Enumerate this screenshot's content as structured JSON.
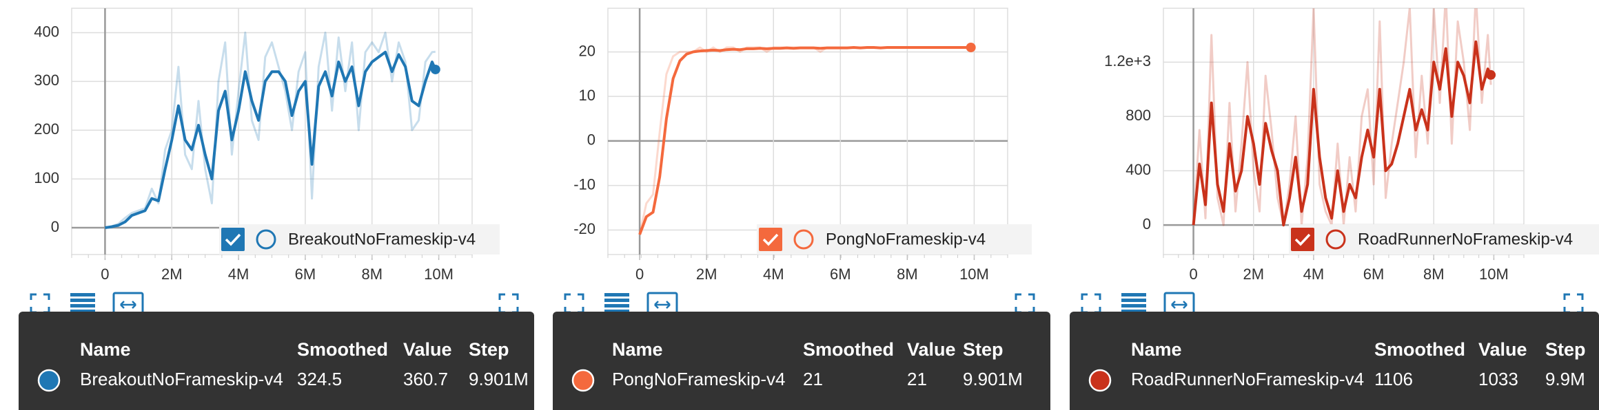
{
  "chart_data": [
    {
      "type": "line",
      "x": [
        0,
        200000,
        400000,
        600000,
        800000,
        1000000,
        1200000,
        1400000,
        1600000,
        1800000,
        2000000,
        2200000,
        2400000,
        2600000,
        2800000,
        3000000,
        3200000,
        3400000,
        3600000,
        3800000,
        4000000,
        4200000,
        4400000,
        4600000,
        4800000,
        5000000,
        5200000,
        5400000,
        5600000,
        5800000,
        6000000,
        6200000,
        6400000,
        6600000,
        6800000,
        7000000,
        7200000,
        7400000,
        7600000,
        7800000,
        8000000,
        8200000,
        8400000,
        8600000,
        8800000,
        9000000,
        9200000,
        9400000,
        9600000,
        9800000,
        9901000
      ],
      "series": [
        {
          "name": "BreakoutNoFrameskip-v4",
          "color": "#1f77b4",
          "values": [
            0,
            2,
            5,
            12,
            25,
            30,
            35,
            60,
            55,
            120,
            180,
            250,
            180,
            160,
            210,
            150,
            100,
            240,
            280,
            180,
            240,
            320,
            260,
            220,
            300,
            320,
            320,
            300,
            230,
            280,
            300,
            130,
            290,
            320,
            270,
            340,
            300,
            330,
            250,
            320,
            340,
            350,
            360,
            320,
            355,
            330,
            260,
            250,
            300,
            340,
            324.5
          ],
          "raw_values": [
            0,
            3,
            8,
            20,
            30,
            35,
            40,
            80,
            50,
            160,
            200,
            330,
            150,
            120,
            260,
            120,
            50,
            300,
            380,
            150,
            280,
            400,
            220,
            180,
            350,
            380,
            330,
            280,
            200,
            320,
            360,
            60,
            330,
            400,
            240,
            390,
            280,
            380,
            200,
            360,
            380,
            360,
            400,
            300,
            380,
            340,
            200,
            220,
            340,
            360,
            360.7
          ]
        }
      ],
      "xlim": [
        -1000000,
        11000000
      ],
      "xticks": [
        0,
        {
          "value": 2000000,
          "label": "2M"
        },
        {
          "value": 4000000,
          "label": "4M"
        },
        {
          "value": 6000000,
          "label": "6M"
        },
        {
          "value": 8000000,
          "label": "8M"
        },
        {
          "value": 10000000,
          "label": "10M"
        }
      ],
      "ylim": [
        -55,
        450
      ],
      "yticks": [
        0,
        100,
        200,
        300,
        400
      ],
      "grid": true,
      "tooltip": {
        "columns": [
          "Name",
          "Smoothed",
          "Value",
          "Step"
        ],
        "smoothed": 324.5,
        "value": 360.7,
        "step": {
          "value": 9901000,
          "label": "9.901M"
        }
      }
    },
    {
      "type": "line",
      "x": [
        0,
        200000,
        400000,
        600000,
        800000,
        1000000,
        1200000,
        1400000,
        1600000,
        1800000,
        2000000,
        2200000,
        2400000,
        2600000,
        2800000,
        3000000,
        3200000,
        3400000,
        3600000,
        3800000,
        4000000,
        4200000,
        4400000,
        4600000,
        4800000,
        5000000,
        5200000,
        5400000,
        5600000,
        5800000,
        6000000,
        6200000,
        6400000,
        6600000,
        6800000,
        7000000,
        7200000,
        7400000,
        7600000,
        7800000,
        8000000,
        8200000,
        8400000,
        8600000,
        8800000,
        9000000,
        9200000,
        9400000,
        9600000,
        9800000,
        9901000
      ],
      "series": [
        {
          "name": "PongNoFrameskip-v4",
          "color": "#f4693d",
          "values": [
            -21,
            -17,
            -16,
            -8,
            5,
            14,
            18,
            19.5,
            20,
            20.2,
            20.3,
            20.4,
            20.3,
            20.5,
            20.6,
            20.5,
            20.7,
            20.7,
            20.8,
            20.7,
            20.8,
            20.8,
            20.9,
            20.8,
            20.9,
            20.9,
            20.9,
            20.8,
            20.9,
            20.9,
            20.9,
            20.9,
            21,
            20.9,
            21,
            21,
            20.9,
            21,
            21,
            21,
            21,
            21,
            21,
            21,
            21,
            21,
            21,
            21,
            21,
            21,
            21
          ],
          "raw_values": [
            -21,
            -14,
            -12,
            2,
            15,
            19,
            20,
            20,
            20,
            21,
            20,
            21,
            20,
            21,
            21,
            20,
            21,
            21,
            21,
            20,
            21,
            21,
            21,
            21,
            21,
            21,
            21,
            20,
            21,
            21,
            21,
            21,
            21,
            21,
            21,
            21,
            21,
            21,
            21,
            21,
            21,
            21,
            21,
            21,
            21,
            21,
            21,
            21,
            21,
            21,
            21
          ]
        }
      ],
      "xlim": [
        -950000,
        11000000
      ],
      "xticks": [
        0,
        {
          "value": 2000000,
          "label": "2M"
        },
        {
          "value": 4000000,
          "label": "4M"
        },
        {
          "value": 6000000,
          "label": "6M"
        },
        {
          "value": 8000000,
          "label": "8M"
        },
        {
          "value": 10000000,
          "label": "10M"
        }
      ],
      "ylim": [
        -25.5,
        29.8
      ],
      "yticks": [
        -20,
        -10,
        0,
        10,
        20
      ],
      "grid": true,
      "tooltip": {
        "columns": [
          "Name",
          "Smoothed",
          "Value",
          "Step"
        ],
        "smoothed": 21,
        "value": 21,
        "step": {
          "value": 9901000,
          "label": "9.901M"
        }
      }
    },
    {
      "type": "line",
      "x": [
        0,
        200000,
        400000,
        600000,
        800000,
        1000000,
        1200000,
        1400000,
        1600000,
        1800000,
        2000000,
        2200000,
        2400000,
        2600000,
        2800000,
        3000000,
        3200000,
        3400000,
        3600000,
        3800000,
        4000000,
        4200000,
        4400000,
        4600000,
        4800000,
        5000000,
        5200000,
        5400000,
        5600000,
        5800000,
        6000000,
        6200000,
        6400000,
        6600000,
        6800000,
        7000000,
        7200000,
        7400000,
        7600000,
        7800000,
        8000000,
        8200000,
        8400000,
        8600000,
        8800000,
        9000000,
        9200000,
        9400000,
        9600000,
        9800000,
        9900000
      ],
      "series": [
        {
          "name": "RoadRunnerNoFrameskip-v4",
          "color": "#c9321b",
          "values": [
            0,
            450,
            150,
            900,
            300,
            100,
            600,
            250,
            400,
            800,
            600,
            300,
            750,
            550,
            400,
            0,
            200,
            500,
            100,
            300,
            1000,
            500,
            200,
            50,
            400,
            100,
            300,
            200,
            500,
            700,
            500,
            1000,
            400,
            450,
            600,
            800,
            1000,
            700,
            850,
            700,
            1200,
            1000,
            1300,
            800,
            1200,
            1100,
            900,
            1350,
            1000,
            1150,
            1106
          ],
          "raw_values": [
            0,
            700,
            50,
            1400,
            200,
            0,
            900,
            100,
            600,
            1200,
            400,
            100,
            1100,
            700,
            200,
            0,
            300,
            800,
            0,
            500,
            1600,
            300,
            100,
            0,
            600,
            0,
            500,
            100,
            800,
            1000,
            300,
            1500,
            200,
            600,
            900,
            1200,
            1600,
            500,
            1100,
            600,
            1600,
            900,
            1700,
            600,
            1500,
            1200,
            700,
            1700,
            900,
            1400,
            1033
          ]
        }
      ],
      "xlim": [
        -1000000,
        11000000
      ],
      "xticks": [
        0,
        {
          "value": 2000000,
          "label": "2M"
        },
        {
          "value": 4000000,
          "label": "4M"
        },
        {
          "value": 6000000,
          "label": "6M"
        },
        {
          "value": 8000000,
          "label": "8M"
        },
        {
          "value": 10000000,
          "label": "10M"
        }
      ],
      "ylim": [
        -217,
        1597
      ],
      "yticks": [
        0,
        400,
        800,
        {
          "value": 1200,
          "label": "1.2e+3"
        }
      ],
      "grid": true,
      "tooltip": {
        "columns": [
          "Name",
          "Smoothed",
          "Value",
          "Step"
        ],
        "smoothed": 1106,
        "value": 1033,
        "step": {
          "value": 9900000,
          "label": "9.9M"
        }
      }
    }
  ]
}
